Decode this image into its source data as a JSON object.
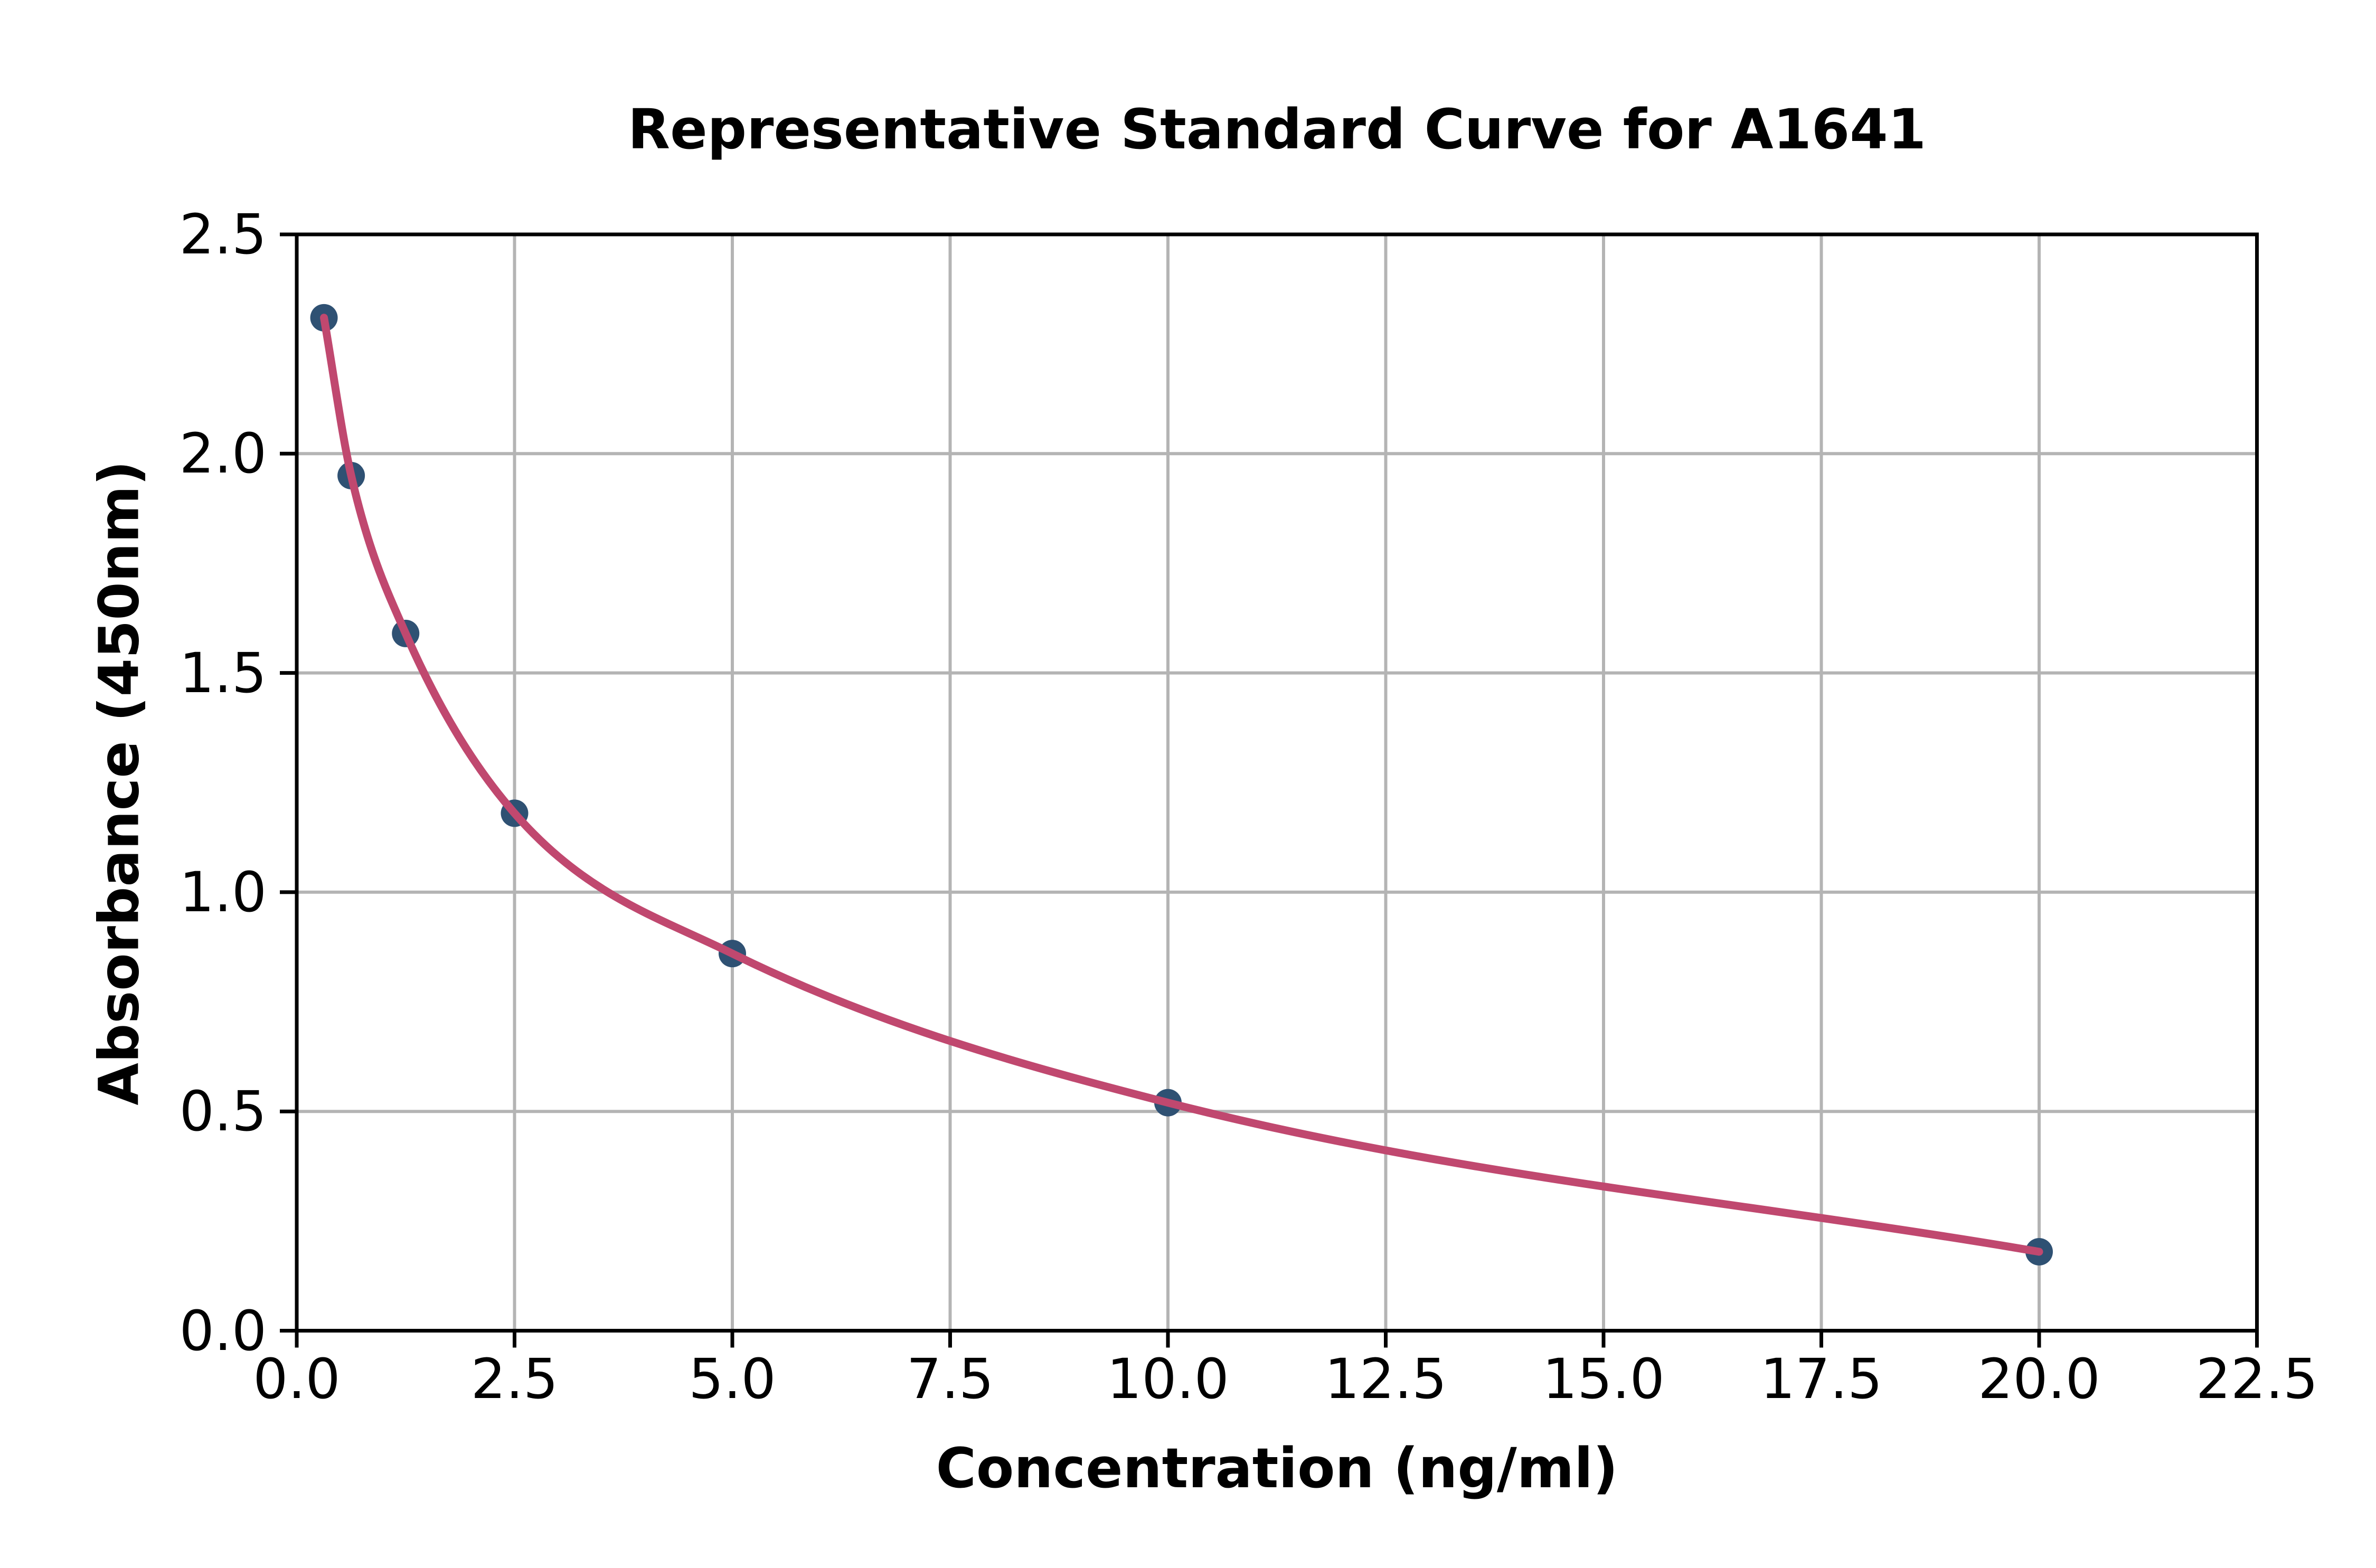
{
  "chart_data": {
    "type": "scatter",
    "title": "Representative Standard Curve for A1641",
    "xlabel": "Concentration (ng/ml)",
    "ylabel": "Absorbance (450nm)",
    "x": [
      0.3125,
      0.625,
      1.25,
      2.5,
      5,
      10,
      20
    ],
    "y": [
      2.31,
      1.95,
      1.59,
      1.18,
      0.86,
      0.52,
      0.18
    ],
    "fit_curve_through_points": true,
    "marker_style": "circle",
    "xlim": [
      0,
      22.5
    ],
    "ylim": [
      0,
      2.5
    ],
    "x_ticks": [
      "0.0",
      "2.5",
      "5.0",
      "7.5",
      "10.0",
      "12.5",
      "15.0",
      "17.5",
      "20.0",
      "22.5"
    ],
    "y_ticks": [
      "0.0",
      "0.5",
      "1.0",
      "1.5",
      "2.0",
      "2.5"
    ],
    "grid": true,
    "legend": "none",
    "colors": {
      "line": "#c0486f",
      "marker": "#2f5173",
      "grid": "#b4b4b4",
      "axis": "#000000",
      "text": "#000000",
      "background": "#ffffff"
    }
  }
}
